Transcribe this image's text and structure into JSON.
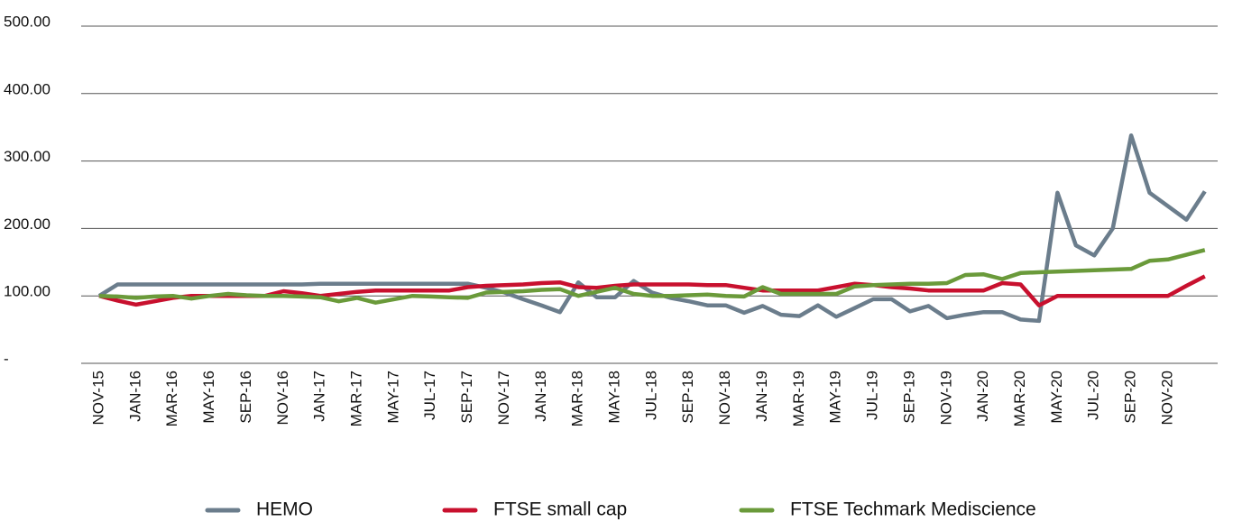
{
  "chart_data": {
    "type": "line",
    "categories": [
      "NOV-15",
      null,
      "JAN-16",
      null,
      "MAR-16",
      null,
      "MAY-16",
      null,
      "SEP-16",
      null,
      "NOV-16",
      null,
      "JAN-17",
      null,
      "MAR-17",
      null,
      "MAY-17",
      null,
      "JUL-17",
      null,
      "SEP-17",
      null,
      "NOV-17",
      null,
      "JAN-18",
      null,
      "MAR-18",
      null,
      "MAY-18",
      null,
      "JUL-18",
      null,
      "SEP-18",
      null,
      "NOV-18",
      null,
      "JAN-19",
      null,
      "MAR-19",
      null,
      "MAY-19",
      null,
      "JUL-19",
      null,
      "SEP-19",
      null,
      "NOV-19",
      null,
      "JAN-20",
      null,
      "MAR-20",
      null,
      "MAY-20",
      null,
      "JUL-20",
      null,
      "SEP-20",
      null,
      "NOV-20",
      null,
      null
    ],
    "series": [
      {
        "name": "HEMO",
        "color": "#6b7d8c",
        "values": [
          100,
          117,
          117,
          117,
          117,
          117,
          117,
          117,
          117,
          117,
          117,
          117,
          118,
          118,
          118,
          118,
          118,
          118,
          118,
          118,
          118,
          112,
          105,
          95,
          86,
          76,
          120,
          98,
          98,
          122,
          105,
          97,
          92,
          86,
          86,
          75,
          85,
          72,
          70,
          86,
          69,
          82,
          95,
          95,
          77,
          85,
          67,
          72,
          76,
          76,
          65,
          63,
          253,
          175,
          160,
          200,
          338,
          253,
          233,
          213,
          255
        ]
      },
      {
        "name": "FTSE small cap",
        "color": "#c8102e",
        "values": [
          100,
          93,
          87,
          92,
          97,
          100,
          100,
          100,
          100,
          100,
          107,
          104,
          100,
          103,
          106,
          108,
          108,
          108,
          108,
          108,
          113,
          115,
          116,
          117,
          119,
          120,
          113,
          112,
          115,
          117,
          117,
          117,
          117,
          116,
          116,
          112,
          108,
          108,
          108,
          108,
          113,
          118,
          116,
          113,
          111,
          108,
          108,
          108,
          108,
          119,
          117,
          86,
          100,
          100,
          100,
          100,
          100,
          100,
          100,
          115,
          129
        ]
      },
      {
        "name": "FTSE Techmark Mediscience",
        "color": "#6a9a3a",
        "values": [
          100,
          99,
          97,
          99,
          100,
          96,
          100,
          103,
          101,
          100,
          100,
          99,
          98,
          92,
          97,
          90,
          95,
          100,
          99,
          98,
          97,
          105,
          106,
          107,
          109,
          110,
          100,
          106,
          112,
          103,
          100,
          100,
          101,
          102,
          100,
          99,
          113,
          103,
          103,
          103,
          103,
          114,
          116,
          117,
          118,
          118,
          119,
          131,
          132,
          125,
          134,
          135,
          136,
          137,
          138,
          139,
          140,
          152,
          154,
          161,
          168
        ]
      }
    ],
    "ylim": [
      0,
      500
    ],
    "yticks": [
      {
        "value": 0,
        "label": "-"
      },
      {
        "value": 100,
        "label": "100.00"
      },
      {
        "value": 200,
        "label": "200.00"
      },
      {
        "value": 300,
        "label": "300.00"
      },
      {
        "value": 400,
        "label": "400.00"
      },
      {
        "value": 500,
        "label": "500.00"
      }
    ],
    "grid": true,
    "legend": "bottom"
  }
}
